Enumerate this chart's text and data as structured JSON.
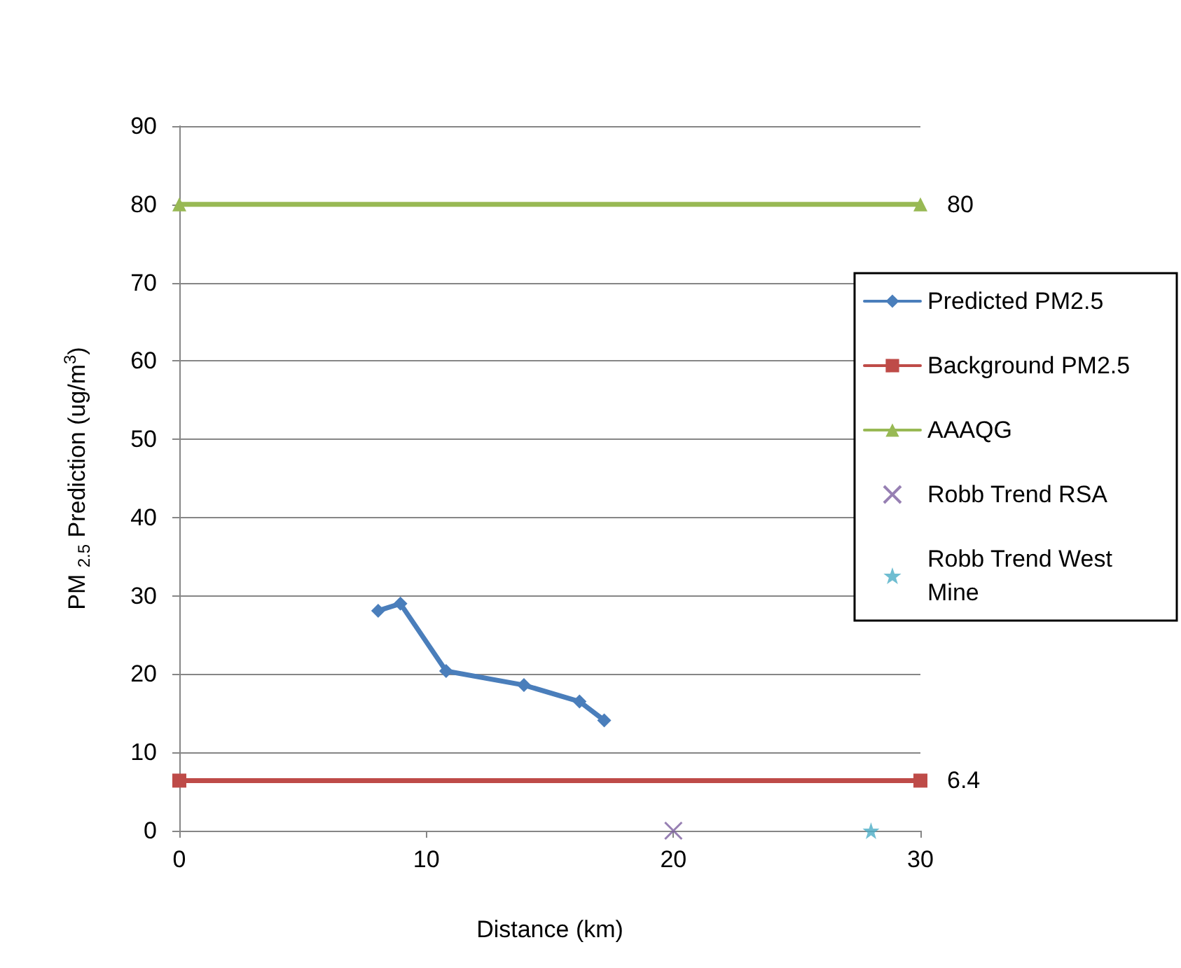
{
  "chart_data": {
    "type": "line",
    "xlabel": "Distance (km)",
    "ylabel": "PM $_{2.5}$ Prediction (ug/m$^{3}$)",
    "xlim": [
      0,
      30
    ],
    "xticks": [
      0,
      10,
      20,
      30
    ],
    "ylim": [
      0,
      90
    ],
    "yticks": [
      0,
      10,
      20,
      30,
      40,
      50,
      60,
      70,
      80,
      90
    ],
    "grid": "y",
    "legend": "right",
    "series": [
      {
        "name": "Predicted PM2.5",
        "marker": "diamond",
        "color": "#4a7ebb",
        "x": [
          8.05,
          8.95,
          10.8,
          13.95,
          16.2,
          17.2
        ],
        "values": [
          28.1,
          29.0,
          20.4,
          18.6,
          16.5,
          14.1
        ]
      },
      {
        "name": "Background PM2.5",
        "marker": "square",
        "color": "#be4b48",
        "x": [
          0,
          30
        ],
        "values": [
          6.4,
          6.4
        ],
        "value_labels": [
          null,
          "6.4"
        ]
      },
      {
        "name": "AAAQG",
        "marker": "triangle",
        "color": "#98b954",
        "x": [
          0,
          30
        ],
        "values": [
          80,
          80
        ],
        "value_labels": [
          null,
          "80"
        ]
      },
      {
        "name": "Robb Trend RSA",
        "type": "scatter",
        "marker": "cross",
        "color": "#7d60a0",
        "x": [
          20
        ],
        "values": [
          0
        ]
      },
      {
        "name": "Robb Trend West Mine",
        "type": "scatter",
        "marker": "star",
        "color": "#4bacc6",
        "x": [
          28
        ],
        "values": [
          0
        ]
      }
    ]
  }
}
